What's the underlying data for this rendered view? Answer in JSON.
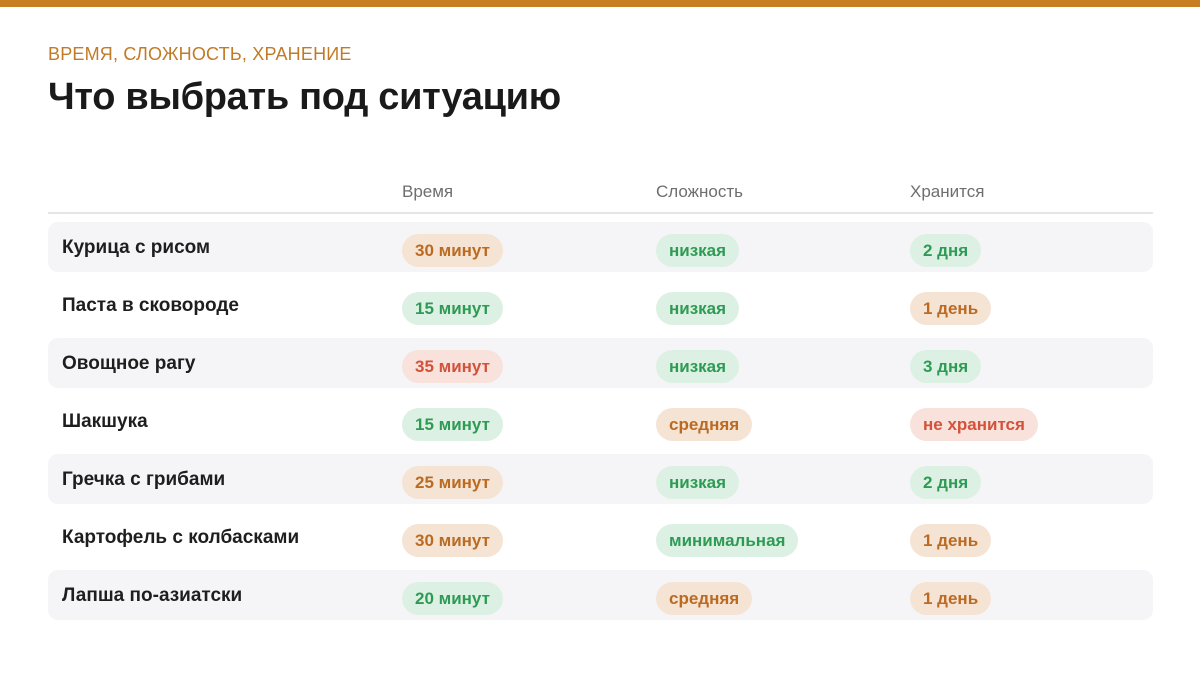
{
  "eyebrow": "ВРЕМЯ, СЛОЖНОСТЬ, ХРАНЕНИЕ",
  "title": "Что выбрать под ситуацию",
  "colors": {
    "accent": "#c97d21",
    "green_bg": "#dcf1e3",
    "green_text": "#2e9b55",
    "orange_bg": "#f5e4d4",
    "orange_text": "#bb6a22",
    "red_bg": "#f9e1dc",
    "red_text": "#d2523a"
  },
  "table": {
    "headers": [
      "Время",
      "Сложность",
      "Хранится"
    ],
    "rows": [
      {
        "name": "Курица с рисом",
        "time": "30 минут",
        "time_tone": "orange",
        "difficulty": "низкая",
        "difficulty_tone": "green",
        "storage": "2 дня",
        "storage_tone": "green"
      },
      {
        "name": "Паста в сковороде",
        "time": "15 минут",
        "time_tone": "green",
        "difficulty": "низкая",
        "difficulty_tone": "green",
        "storage": "1 день",
        "storage_tone": "orange"
      },
      {
        "name": "Овощное рагу",
        "time": "35 минут",
        "time_tone": "red",
        "difficulty": "низкая",
        "difficulty_tone": "green",
        "storage": "3 дня",
        "storage_tone": "green"
      },
      {
        "name": "Шакшука",
        "time": "15 минут",
        "time_tone": "green",
        "difficulty": "средняя",
        "difficulty_tone": "orange",
        "storage": "не хранится",
        "storage_tone": "red"
      },
      {
        "name": "Гречка с грибами",
        "time": "25 минут",
        "time_tone": "orange",
        "difficulty": "низкая",
        "difficulty_tone": "green",
        "storage": "2 дня",
        "storage_tone": "green"
      },
      {
        "name": "Картофель с колбасками",
        "time": "30 минут",
        "time_tone": "orange",
        "difficulty": "минимальная",
        "difficulty_tone": "green",
        "storage": "1 день",
        "storage_tone": "orange"
      },
      {
        "name": "Лапша по-азиатски",
        "time": "20 минут",
        "time_tone": "green",
        "difficulty": "средняя",
        "difficulty_tone": "orange",
        "storage": "1 день",
        "storage_tone": "orange"
      }
    ]
  }
}
